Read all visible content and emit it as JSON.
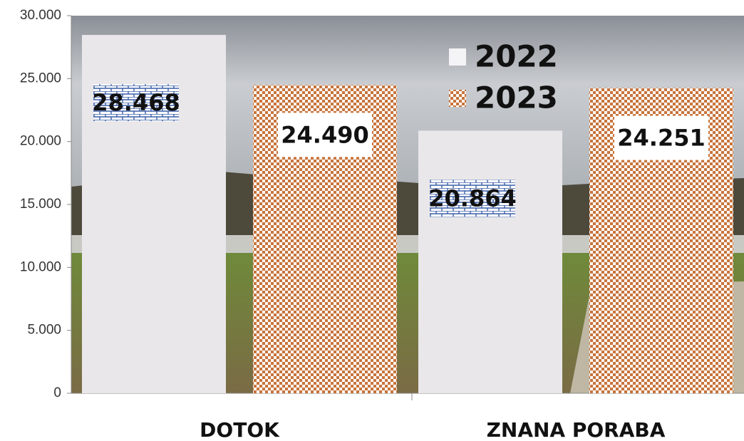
{
  "chart_data": {
    "type": "bar",
    "categories": [
      "DOTOK",
      "ZNANA PORABA"
    ],
    "series": [
      {
        "name": "2022",
        "color": "#e9e7ea",
        "values": [
          28468,
          20864
        ],
        "value_labels": [
          "28.468",
          "20.864"
        ]
      },
      {
        "name": "2023",
        "color": "#c8743c",
        "values": [
          24490,
          24251
        ],
        "value_labels": [
          "24.490",
          "24.251"
        ]
      }
    ],
    "ylim": [
      0,
      30000
    ],
    "yticks": [
      0,
      {
        "value": 5000,
        "label": "5.000"
      },
      {
        "value": 10000,
        "label": "10.000"
      },
      {
        "value": 15000,
        "label": "15.000"
      },
      {
        "value": 20000,
        "label": "20.000"
      },
      {
        "value": 25000,
        "label": "25.000"
      },
      {
        "value": 30000,
        "label": "30.000"
      }
    ],
    "legend": "top-right"
  }
}
